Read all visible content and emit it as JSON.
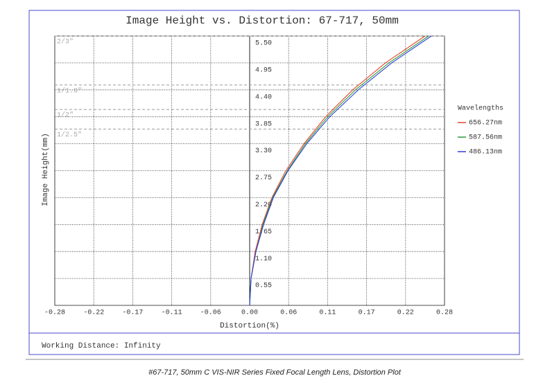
{
  "chart_data": {
    "type": "line",
    "title": "Image Height vs. Distortion: 67-717, 50mm",
    "x_label": "Distortion(%)",
    "y_label": "Image Height(mm)",
    "legend_title": "Wavelengths",
    "series": [
      {
        "name": "656.27nm",
        "color": "#e8412c",
        "x": [
          0,
          0.002,
          0.008,
          0.018,
          0.032,
          0.052,
          0.078,
          0.109,
          0.148,
          0.195,
          0.252
        ],
        "values": [
          0,
          0.55,
          1.1,
          1.65,
          2.2,
          2.75,
          3.3,
          3.85,
          4.4,
          4.95,
          5.5
        ]
      },
      {
        "name": "587.56nm",
        "color": "#2a9a3c",
        "x": [
          0,
          0.002,
          0.009,
          0.019,
          0.033,
          0.054,
          0.08,
          0.112,
          0.152,
          0.2,
          0.257
        ],
        "values": [
          0,
          0.55,
          1.1,
          1.65,
          2.2,
          2.75,
          3.3,
          3.85,
          4.4,
          4.95,
          5.5
        ]
      },
      {
        "name": "486.13nm",
        "color": "#2b3fd6",
        "x": [
          0,
          0.002,
          0.009,
          0.02,
          0.034,
          0.055,
          0.082,
          0.115,
          0.156,
          0.204,
          0.261
        ],
        "values": [
          0,
          0.55,
          1.1,
          1.65,
          2.2,
          2.75,
          3.3,
          3.85,
          4.4,
          4.95,
          5.5
        ]
      }
    ],
    "xlim": [
      -0.28,
      0.28
    ],
    "xticks": [
      -0.28,
      {
        "value": -0.224,
        "label": "-0.22"
      },
      {
        "value": -0.168,
        "label": "-0.17"
      },
      {
        "value": -0.112,
        "label": "-0.11"
      },
      {
        "value": -0.056,
        "label": "-0.06"
      },
      {
        "value": 0,
        "label": "0.00"
      },
      {
        "value": 0.056,
        "label": "0.06"
      },
      {
        "value": 0.112,
        "label": "0.11"
      },
      {
        "value": 0.168,
        "label": "0.17"
      },
      {
        "value": 0.224,
        "label": "0.22"
      },
      0.28
    ],
    "ylim": [
      0,
      5.5
    ],
    "yticks": [
      0.55,
      {
        "value": 1.1,
        "label": "1.10"
      },
      1.65,
      {
        "value": 2.2,
        "label": "2.20"
      },
      2.75,
      {
        "value": 3.3,
        "label": "3.30"
      },
      3.85,
      {
        "value": 4.4,
        "label": "4.40"
      },
      4.95,
      {
        "value": 5.5,
        "label": "5.50"
      }
    ],
    "grid": true,
    "sensor_formats": [
      {
        "label": "2/3\"",
        "value": 5.5
      },
      {
        "label": "1/1.8\"",
        "value": 4.5
      },
      {
        "label": "1/2\"",
        "value": 4.0
      },
      {
        "label": "1/2.5\"",
        "value": 3.6
      }
    ],
    "footer": "Working Distance: Infinity",
    "caption": "#67-717, 50mm C VIS-NIR Series Fixed Focal Length Lens, Distortion Plot"
  }
}
